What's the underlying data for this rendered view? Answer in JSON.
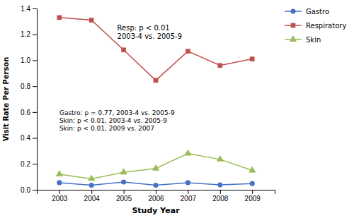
{
  "chart_data": {
    "type": "line",
    "x": [
      2003,
      2004,
      2005,
      2006,
      2007,
      2008,
      2009
    ],
    "series": [
      {
        "name": "Gastro",
        "color": "#4472C4",
        "marker": "circle",
        "values": [
          0.055,
          0.035,
          0.06,
          0.035,
          0.055,
          0.038,
          0.048
        ]
      },
      {
        "name": "Respiratory",
        "color": "#C0504D",
        "marker": "square",
        "values": [
          1.33,
          1.31,
          1.08,
          0.845,
          1.07,
          0.96,
          1.01
        ]
      },
      {
        "name": "Skin",
        "color": "#9BBB59",
        "marker": "triangle",
        "values": [
          0.12,
          0.085,
          0.135,
          0.165,
          0.28,
          0.235,
          0.15
        ]
      }
    ],
    "xlabel": "Study Year",
    "ylabel": "Visit Rate Per Person",
    "xlim": [
      2002.3,
      2009.7
    ],
    "xticks": [
      2003,
      2004,
      2005,
      2006,
      2007,
      2008,
      2009
    ],
    "ylim": [
      0.0,
      1.4
    ],
    "yticks": [
      {
        "value": 0.0,
        "label": "0.0"
      },
      0.2,
      0.4,
      0.6,
      0.8,
      {
        "value": 1.0,
        "label": "1.0"
      },
      1.2,
      1.4
    ],
    "annotations": [
      "Resp:  p < 0.01\n2003-4 vs. 2005-9",
      "Gastro: p = 0.77, 2003-4 vs. 2005-9\nSkin: p < 0.01, 2003-4 vs. 2005-9\nSkin: p < 0.01, 2009 vs. 2007"
    ],
    "grid": false,
    "legend": "right"
  }
}
